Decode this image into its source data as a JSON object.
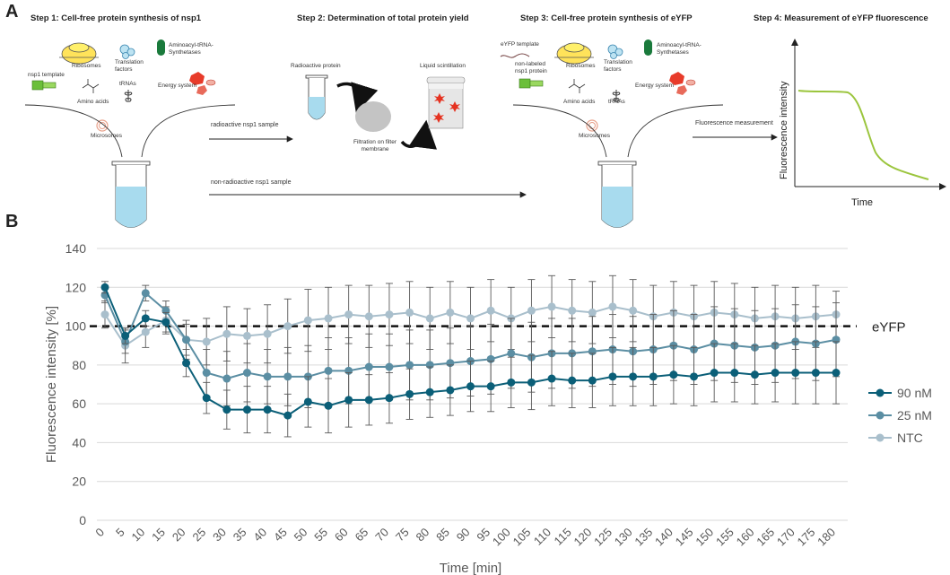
{
  "panel_a": {
    "letter": "A",
    "steps": [
      "Step 1: Cell-free protein synthesis of nsp1",
      "Step 2: Determination of total protein yield",
      "Step 3: Cell-free protein synthesis of eYFP",
      "Step 4: Measurement of eYFP fluorescence"
    ],
    "step1": {
      "ribosomes": "Ribosomes",
      "translation_factors": "Translation factors",
      "aminoacyl": "Aminoacyl-tRNA-Synthetases",
      "nsp1_template": "nsp1 template",
      "energy_system": "Energy system",
      "amino_acids": "Amino acids",
      "trnas": "tRNAs",
      "microsomes": "Microsomes"
    },
    "step2": {
      "radioactive_protein": "Radioactive protein",
      "liquid_scintillation": "Liquid scintillation",
      "filtration": "Filtration on filter membrane"
    },
    "step3": {
      "eyfp_template": "eYFP template",
      "non_labeled": "non-labeled nsp1 protein",
      "ribosomes": "Ribosomes",
      "translation_factors": "Translation factors",
      "aminoacyl": "Aminoacyl-tRNA-Synthetases",
      "energy_system": "Energy system",
      "amino_acids": "Amino acids",
      "trnas": "tRNAs",
      "microsomes": "Microsomes"
    },
    "arrows": {
      "radioactive": "radioactive nsp1 sample",
      "non_radioactive": "non-radioactive nsp1 sample",
      "fluorescence": "Fluorescence measurement"
    },
    "step4": {
      "ylabel": "Fluorescence intensity",
      "xlabel": "Time"
    }
  },
  "panel_b": {
    "letter": "B"
  },
  "colors": {
    "s90": "#0b5f78",
    "s25": "#5b8ea3",
    "ntc": "#a9bfcc",
    "grid": "#d9d9d9",
    "green": "#9bc53d"
  },
  "chart_data": {
    "type": "line",
    "title": "",
    "xlabel": "Time [min]",
    "ylabel": "Fluorescence intensity [%]",
    "ylim": [
      0,
      140
    ],
    "yticks": [
      0,
      20,
      40,
      60,
      80,
      100,
      120,
      140
    ],
    "reference_line": {
      "value": 100,
      "label": "eYFP",
      "style": "dashed"
    },
    "x": [
      0,
      5,
      10,
      15,
      20,
      25,
      30,
      35,
      40,
      45,
      50,
      55,
      60,
      65,
      70,
      75,
      80,
      85,
      90,
      95,
      100,
      105,
      110,
      115,
      120,
      125,
      130,
      135,
      140,
      145,
      150,
      155,
      160,
      165,
      170,
      175,
      180
    ],
    "series": [
      {
        "name": "90 nM",
        "values": [
          120,
          95,
          104,
          102,
          81,
          63,
          57,
          57,
          57,
          54,
          61,
          59,
          62,
          62,
          63,
          65,
          66,
          67,
          69,
          69,
          71,
          71,
          73,
          72,
          72,
          74,
          74,
          74,
          75,
          74,
          76,
          76,
          75,
          76,
          76,
          76,
          76
        ],
        "error": [
          3,
          4,
          4,
          5,
          7,
          8,
          10,
          12,
          12,
          11,
          13,
          14,
          14,
          13,
          13,
          13,
          13,
          13,
          13,
          13,
          13,
          14,
          14,
          14,
          14,
          15,
          15,
          15,
          15,
          15,
          15,
          15,
          15,
          15,
          16,
          16,
          16
        ]
      },
      {
        "name": "25 nM",
        "values": [
          116,
          92,
          117,
          108,
          93,
          76,
          73,
          76,
          74,
          74,
          74,
          77,
          77,
          79,
          79,
          80,
          80,
          81,
          82,
          83,
          86,
          84,
          86,
          86,
          87,
          88,
          87,
          88,
          90,
          88,
          91,
          90,
          89,
          90,
          92,
          91,
          93
        ],
        "error": [
          4,
          6,
          4,
          5,
          8,
          12,
          14,
          15,
          14,
          15,
          16,
          17,
          17,
          17,
          17,
          18,
          18,
          18,
          18,
          18,
          18,
          18,
          18,
          18,
          18,
          18,
          18,
          18,
          18,
          18,
          19,
          19,
          19,
          19,
          19,
          19,
          19
        ]
      },
      {
        "name": "NTC",
        "values": [
          106,
          90,
          97,
          103,
          93,
          92,
          96,
          95,
          96,
          100,
          103,
          104,
          106,
          105,
          106,
          107,
          104,
          107,
          104,
          108,
          104,
          108,
          110,
          108,
          107,
          110,
          108,
          105,
          107,
          105,
          107,
          106,
          104,
          105,
          104,
          105,
          106
        ],
        "error": [
          7,
          9,
          8,
          7,
          10,
          12,
          14,
          14,
          15,
          14,
          16,
          16,
          15,
          16,
          16,
          16,
          16,
          16,
          16,
          16,
          16,
          16,
          16,
          16,
          16,
          16,
          16,
          16,
          16,
          16,
          16,
          16,
          16,
          16,
          16,
          16,
          12
        ]
      }
    ],
    "legend": "right"
  }
}
